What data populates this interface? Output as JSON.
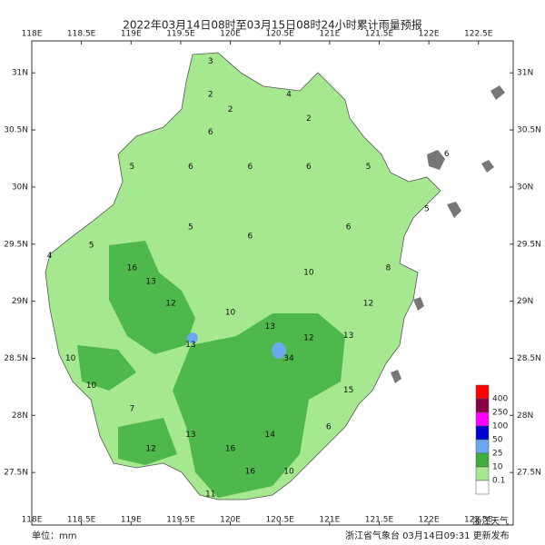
{
  "map": {
    "title": "2022年03月14日08时至03月15日08时24小时累计雨量预报",
    "lon_ticks": [
      {
        "value": 118,
        "label": "118E"
      },
      {
        "value": 118.5,
        "label": "118.5E"
      },
      {
        "value": 119,
        "label": "119E"
      },
      {
        "value": 119.5,
        "label": "119.5E"
      },
      {
        "value": 120,
        "label": "120E"
      },
      {
        "value": 120.5,
        "label": "120.5E"
      },
      {
        "value": 121,
        "label": "121E"
      },
      {
        "value": 121.5,
        "label": "121.5E"
      },
      {
        "value": 122,
        "label": "122E"
      },
      {
        "value": 122.5,
        "label": "122.5E"
      }
    ],
    "lat_ticks": [
      {
        "value": 31,
        "label": "31N"
      },
      {
        "value": 30.5,
        "label": "30.5N"
      },
      {
        "value": 30,
        "label": "30N"
      },
      {
        "value": 29.5,
        "label": "29.5N"
      },
      {
        "value": 29,
        "label": "29N"
      },
      {
        "value": 28.5,
        "label": "28.5N"
      },
      {
        "value": 28,
        "label": "28N"
      },
      {
        "value": 27.5,
        "label": "27.5N"
      }
    ],
    "lon_range": [
      118,
      122.85
    ],
    "lat_range": [
      27.04,
      31.28
    ],
    "legend": {
      "labels": [
        "400",
        "250",
        "100",
        "50",
        "25",
        "10",
        "0.1"
      ],
      "colors": [
        "#ff0000",
        "#8c0046",
        "#ff00ff",
        "#0000d0",
        "#6aa8f0",
        "#3fae3f",
        "#a6e890",
        "#ffffff"
      ]
    },
    "points": [
      {
        "lon": 119.8,
        "lat": 31.1,
        "value": 3
      },
      {
        "lon": 119.8,
        "lat": 30.81,
        "value": 2
      },
      {
        "lon": 120.0,
        "lat": 30.68,
        "value": 2
      },
      {
        "lon": 120.59,
        "lat": 30.81,
        "value": 4
      },
      {
        "lon": 120.79,
        "lat": 30.6,
        "value": 2
      },
      {
        "lon": 119.01,
        "lat": 30.18,
        "value": 5
      },
      {
        "lon": 119.6,
        "lat": 30.18,
        "value": 6
      },
      {
        "lon": 120.2,
        "lat": 30.18,
        "value": 6
      },
      {
        "lon": 120.79,
        "lat": 30.18,
        "value": 6
      },
      {
        "lon": 121.39,
        "lat": 30.18,
        "value": 5
      },
      {
        "lon": 121.98,
        "lat": 29.81,
        "value": 5
      },
      {
        "lon": 118.6,
        "lat": 29.49,
        "value": 5
      },
      {
        "lon": 119.01,
        "lat": 29.29,
        "value": 16
      },
      {
        "lon": 119.2,
        "lat": 29.17,
        "value": 13
      },
      {
        "lon": 119.4,
        "lat": 28.98,
        "value": 12
      },
      {
        "lon": 119.6,
        "lat": 28.62,
        "value": 13
      },
      {
        "lon": 120.0,
        "lat": 28.9,
        "value": 10
      },
      {
        "lon": 120.4,
        "lat": 28.78,
        "value": 13
      },
      {
        "lon": 120.59,
        "lat": 28.5,
        "value": 34
      },
      {
        "lon": 120.79,
        "lat": 28.68,
        "value": 12
      },
      {
        "lon": 121.19,
        "lat": 28.7,
        "value": 13
      },
      {
        "lon": 121.39,
        "lat": 28.98,
        "value": 12
      },
      {
        "lon": 118.39,
        "lat": 28.5,
        "value": 10
      },
      {
        "lon": 118.6,
        "lat": 28.26,
        "value": 10
      },
      {
        "lon": 119.01,
        "lat": 28.06,
        "value": 7
      },
      {
        "lon": 119.2,
        "lat": 27.71,
        "value": 12
      },
      {
        "lon": 119.6,
        "lat": 27.83,
        "value": 13
      },
      {
        "lon": 120.0,
        "lat": 27.71,
        "value": 16
      },
      {
        "lon": 120.2,
        "lat": 27.51,
        "value": 16
      },
      {
        "lon": 120.4,
        "lat": 27.83,
        "value": 14
      },
      {
        "lon": 120.59,
        "lat": 27.51,
        "value": 10
      },
      {
        "lon": 119.8,
        "lat": 27.31,
        "value": 11
      },
      {
        "lon": 120.99,
        "lat": 27.9,
        "value": 6
      },
      {
        "lon": 121.19,
        "lat": 28.22,
        "value": 15
      },
      {
        "lon": 118.18,
        "lat": 29.4,
        "value": 4
      },
      {
        "lon": 120.79,
        "lat": 29.25,
        "value": 10
      },
      {
        "lon": 120.2,
        "lat": 29.57,
        "value": 6
      },
      {
        "lon": 119.6,
        "lat": 29.65,
        "value": 5
      },
      {
        "lon": 121.19,
        "lat": 29.65,
        "value": 6
      },
      {
        "lon": 121.59,
        "lat": 29.29,
        "value": 8
      },
      {
        "lon": 122.18,
        "lat": 30.29,
        "value": 6
      },
      {
        "lon": 119.8,
        "lat": 30.48,
        "value": 6
      }
    ],
    "unit": "单位：mm",
    "issuer": "浙江省气象台  03月14日09:31 更新发布",
    "watermark": "浙江天气"
  }
}
